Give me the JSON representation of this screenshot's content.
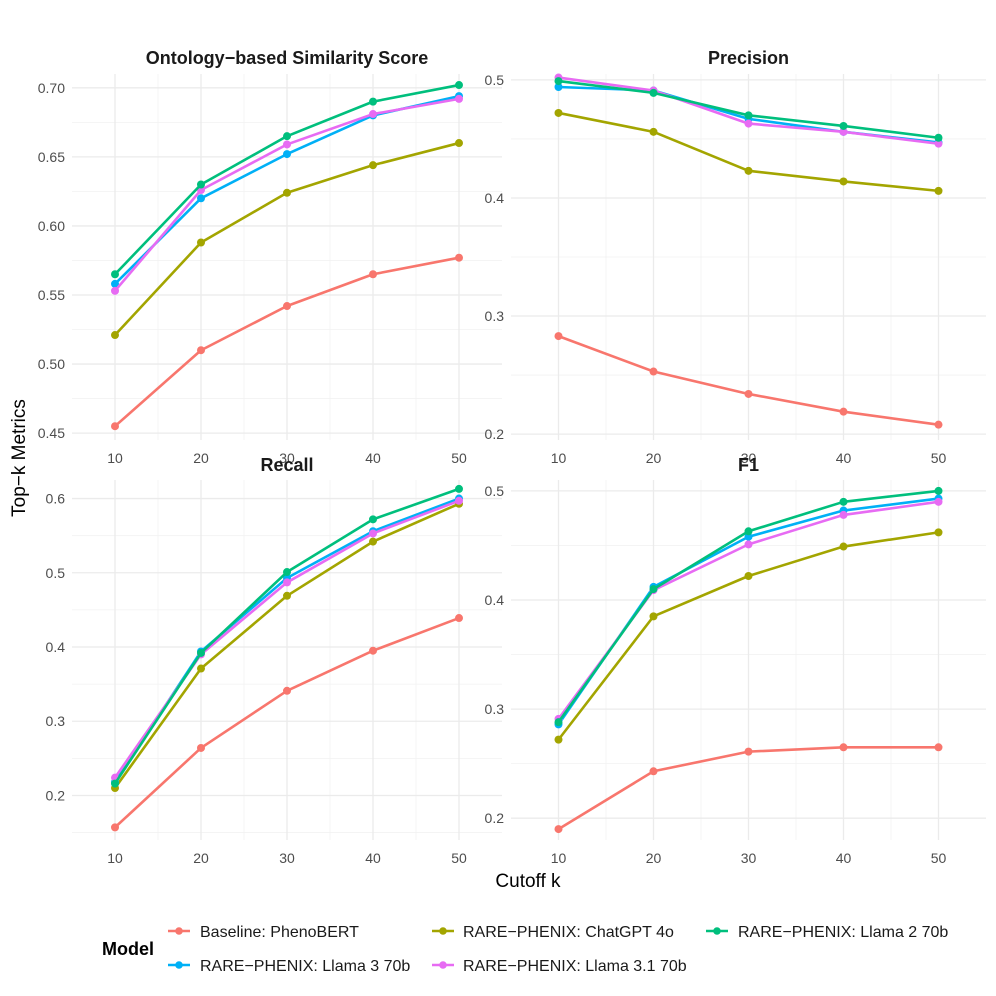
{
  "figure": {
    "ylabel": "Top−k Metrics",
    "xlabel": "Cutoff k"
  },
  "legend": {
    "title": "Model",
    "position": "bottom"
  },
  "series_styles": [
    {
      "name": "Baseline: PhenoBERT",
      "color": "#F8766D"
    },
    {
      "name": "RARE−PHENIX: Llama 3 70b",
      "color": "#00B0F6"
    },
    {
      "name": "RARE−PHENIX: ChatGPT 4o",
      "color": "#A3A500"
    },
    {
      "name": "RARE−PHENIX: Llama 3.1 70b",
      "color": "#E76BF3"
    },
    {
      "name": "RARE−PHENIX: Llama 2 70b",
      "color": "#00BF7D"
    }
  ],
  "chart_data": [
    {
      "type": "line",
      "title": "Ontology−based Similarity Score",
      "x": [
        10,
        20,
        30,
        40,
        50
      ],
      "xticks": [
        10,
        20,
        30,
        40,
        50
      ],
      "yticks": [
        0.45,
        0.5,
        0.55,
        0.6,
        0.65,
        0.7
      ],
      "ytick_labels": [
        "0.45",
        "0.50",
        "0.55",
        "0.60",
        "0.65",
        "0.70"
      ],
      "ylim": [
        0.445,
        0.71
      ],
      "grid": true,
      "series": [
        {
          "name": "Baseline: PhenoBERT",
          "values": [
            0.455,
            0.51,
            0.542,
            0.565,
            0.577
          ]
        },
        {
          "name": "RARE−PHENIX: ChatGPT 4o",
          "values": [
            0.521,
            0.588,
            0.624,
            0.644,
            0.66
          ]
        },
        {
          "name": "RARE−PHENIX: Llama 3 70b",
          "values": [
            0.558,
            0.62,
            0.652,
            0.68,
            0.694
          ]
        },
        {
          "name": "RARE−PHENIX: Llama 3.1 70b",
          "values": [
            0.553,
            0.626,
            0.659,
            0.681,
            0.692
          ]
        },
        {
          "name": "RARE−PHENIX: Llama 2 70b",
          "values": [
            0.565,
            0.63,
            0.665,
            0.69,
            0.702
          ]
        }
      ]
    },
    {
      "type": "line",
      "title": "Precision",
      "x": [
        10,
        20,
        30,
        40,
        50
      ],
      "xticks": [
        10,
        20,
        30,
        40,
        50
      ],
      "yticks": [
        0.2,
        0.3,
        0.4,
        0.5
      ],
      "ytick_labels": [
        "0.2",
        "0.3",
        "0.4",
        "0.5"
      ],
      "ylim": [
        0.195,
        0.505
      ],
      "grid": true,
      "series": [
        {
          "name": "Baseline: PhenoBERT",
          "values": [
            0.283,
            0.253,
            0.234,
            0.219,
            0.208
          ]
        },
        {
          "name": "RARE−PHENIX: ChatGPT 4o",
          "values": [
            0.472,
            0.456,
            0.423,
            0.414,
            0.406
          ]
        },
        {
          "name": "RARE−PHENIX: Llama 3 70b",
          "values": [
            0.494,
            0.491,
            0.467,
            0.456,
            0.447
          ]
        },
        {
          "name": "RARE−PHENIX: Llama 3.1 70b",
          "values": [
            0.502,
            0.491,
            0.463,
            0.456,
            0.446
          ]
        },
        {
          "name": "RARE−PHENIX: Llama 2 70b",
          "values": [
            0.499,
            0.489,
            0.47,
            0.461,
            0.451
          ]
        }
      ]
    },
    {
      "type": "line",
      "title": "Recall",
      "x": [
        10,
        20,
        30,
        40,
        50
      ],
      "xticks": [
        10,
        20,
        30,
        40,
        50
      ],
      "yticks": [
        0.2,
        0.3,
        0.4,
        0.5,
        0.6
      ],
      "ytick_labels": [
        "0.2",
        "0.3",
        "0.4",
        "0.5",
        "0.6"
      ],
      "ylim": [
        0.14,
        0.625
      ],
      "grid": true,
      "series": [
        {
          "name": "Baseline: PhenoBERT",
          "values": [
            0.157,
            0.264,
            0.341,
            0.395,
            0.439
          ]
        },
        {
          "name": "RARE−PHENIX: ChatGPT 4o",
          "values": [
            0.21,
            0.371,
            0.469,
            0.542,
            0.593
          ]
        },
        {
          "name": "RARE−PHENIX: Llama 3 70b",
          "values": [
            0.218,
            0.394,
            0.493,
            0.556,
            0.6
          ]
        },
        {
          "name": "RARE−PHENIX: Llama 3.1 70b",
          "values": [
            0.224,
            0.39,
            0.487,
            0.553,
            0.597
          ]
        },
        {
          "name": "RARE−PHENIX: Llama 2 70b",
          "values": [
            0.216,
            0.392,
            0.501,
            0.572,
            0.613
          ]
        }
      ]
    },
    {
      "type": "line",
      "title": "F1",
      "x": [
        10,
        20,
        30,
        40,
        50
      ],
      "xticks": [
        10,
        20,
        30,
        40,
        50
      ],
      "yticks": [
        0.2,
        0.3,
        0.4,
        0.5
      ],
      "ytick_labels": [
        "0.2",
        "0.3",
        "0.4",
        "0.5"
      ],
      "ylim": [
        0.18,
        0.51
      ],
      "grid": true,
      "series": [
        {
          "name": "Baseline: PhenoBERT",
          "values": [
            0.19,
            0.243,
            0.261,
            0.265,
            0.265
          ]
        },
        {
          "name": "RARE−PHENIX: ChatGPT 4o",
          "values": [
            0.272,
            0.385,
            0.422,
            0.449,
            0.462
          ]
        },
        {
          "name": "RARE−PHENIX: Llama 3 70b",
          "values": [
            0.286,
            0.412,
            0.458,
            0.482,
            0.493
          ]
        },
        {
          "name": "RARE−PHENIX: Llama 3.1 70b",
          "values": [
            0.291,
            0.409,
            0.451,
            0.478,
            0.49
          ]
        },
        {
          "name": "RARE−PHENIX: Llama 2 70b",
          "values": [
            0.288,
            0.41,
            0.463,
            0.49,
            0.5
          ]
        }
      ]
    }
  ]
}
